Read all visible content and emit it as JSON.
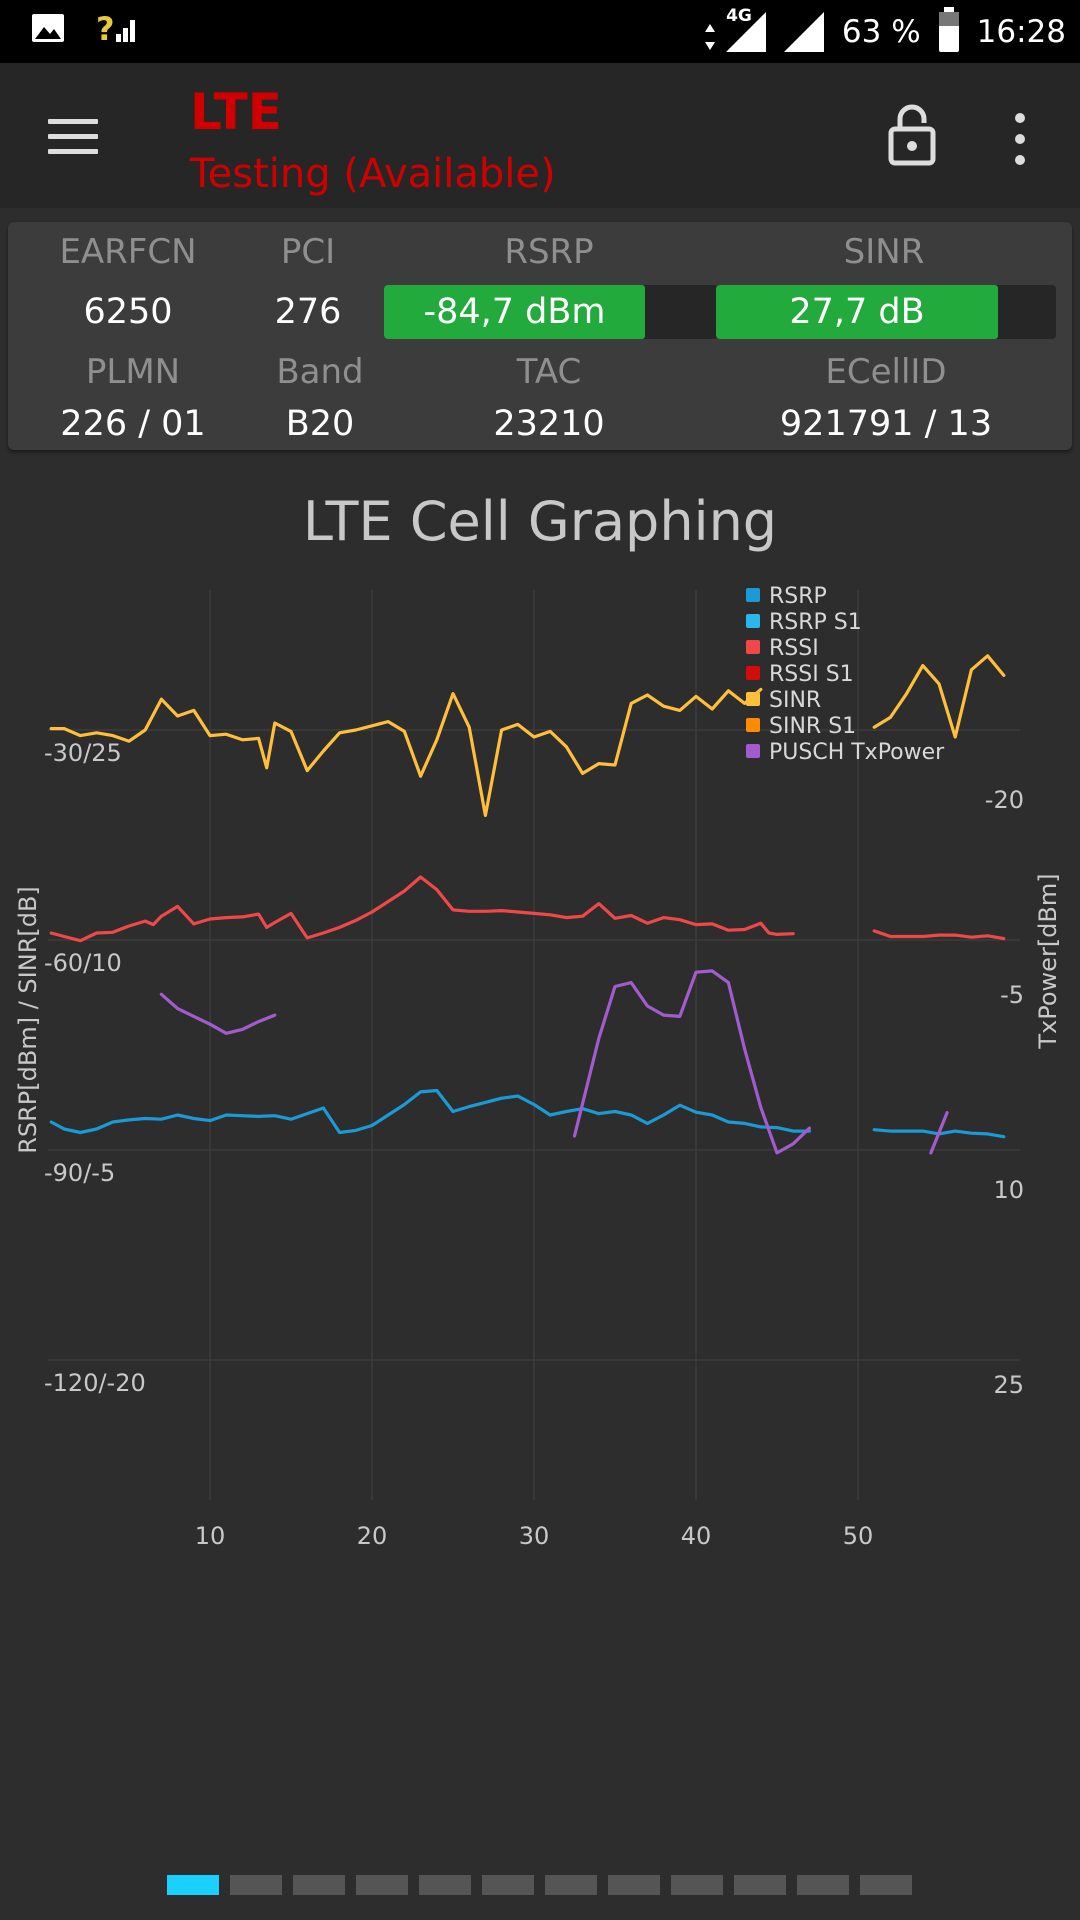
{
  "status_bar": {
    "net_label": "4G",
    "battery": "63 %",
    "time": "16:28",
    "icons": [
      "image-icon",
      "unknown-signal-icon",
      "data-arrows-icon",
      "signal-icon",
      "signal-icon",
      "battery-icon"
    ]
  },
  "app_bar": {
    "title": "LTE",
    "subtitle": "Testing (Available)",
    "icons": [
      "menu-icon",
      "lock-icon",
      "more-vert-icon"
    ]
  },
  "cell_info": {
    "earfcn_label": "EARFCN",
    "earfcn": "6250",
    "pci_label": "PCI",
    "pci": "276",
    "rsrp_label": "RSRP",
    "rsrp": "-84,7 dBm",
    "rsrp_fill": 0.78,
    "sinr_label": "SINR",
    "sinr": "27,7 dB",
    "sinr_fill": 0.83,
    "plmn_label": "PLMN",
    "plmn": "226 / 01",
    "band_label": "Band",
    "band": "B20",
    "tac_label": "TAC",
    "tac": "23210",
    "ecellid_label": "ECellID",
    "ecellid": "921791 / 13"
  },
  "colors": {
    "rsrp": "#1a9ad6",
    "rsrp_s1": "#2cb7ec",
    "rssi": "#f04848",
    "rssi_s1": "#d40b0b",
    "sinr": "#ffbf3a",
    "sinr_s1": "#ff8c00",
    "pusch": "#a45bd0",
    "rsrp_bar": "#22aa3c"
  },
  "chart_data": {
    "type": "line",
    "title": "LTE Cell Graphing",
    "ylabel": "RSRP[dBm] / SINR[dB]",
    "y2label": "TxPower[dBm]",
    "x_ticks": [
      "10",
      "20",
      "30",
      "40",
      "50"
    ],
    "xlim": [
      0,
      60
    ],
    "y_ticks": [
      "-30/25",
      "-60/10",
      "-90/-5",
      "-120/-20"
    ],
    "y_rsrp_lim": [
      -140,
      -10
    ],
    "y_sinr_lim": [
      -30,
      35
    ],
    "y2_ticks": [
      "-20",
      "-5",
      "10",
      "25"
    ],
    "y2_lim": [
      -35,
      35
    ],
    "grid": true,
    "legend_position": "top-right",
    "legend": [
      "RSRP",
      "RSRP S1",
      "RSSI",
      "RSSI S1",
      "SINR",
      "SINR S1",
      "PUSCH TxPower"
    ],
    "series": [
      {
        "name": "RSRP",
        "color_key": "rsrp",
        "axis": "rsrp",
        "points": [
          [
            0.2,
            -86
          ],
          [
            1,
            -87
          ],
          [
            2,
            -87.5
          ],
          [
            3,
            -87
          ],
          [
            4,
            -86
          ],
          [
            5,
            -85.7
          ],
          [
            6,
            -85.5
          ],
          [
            7,
            -85.6
          ],
          [
            8,
            -85
          ],
          [
            9,
            -85.5
          ],
          [
            10,
            -85.8
          ],
          [
            11,
            -85
          ],
          [
            12,
            -85.1
          ],
          [
            13,
            -85.2
          ],
          [
            14,
            -85.1
          ],
          [
            15,
            -85.6
          ],
          [
            16,
            -84.8
          ],
          [
            17,
            -84
          ],
          [
            18,
            -87.5
          ],
          [
            19,
            -87.2
          ],
          [
            20,
            -86.5
          ],
          [
            21,
            -85
          ],
          [
            22,
            -83.5
          ],
          [
            23,
            -81.7
          ],
          [
            24,
            -81.5
          ],
          [
            25,
            -84.5
          ],
          [
            26,
            -83.8
          ],
          [
            27,
            -83.2
          ],
          [
            28,
            -82.6
          ],
          [
            29,
            -82.3
          ],
          [
            30,
            -83.5
          ],
          [
            31,
            -85
          ],
          [
            32,
            -84.5
          ],
          [
            33,
            -84.1
          ],
          [
            34,
            -84.8
          ],
          [
            35,
            -84.5
          ],
          [
            36,
            -85
          ],
          [
            37,
            -86.2
          ],
          [
            38,
            -85
          ],
          [
            39,
            -83.6
          ],
          [
            40,
            -84.6
          ],
          [
            41,
            -85
          ],
          [
            42,
            -86
          ],
          [
            43,
            -86.2
          ],
          [
            44,
            -86.7
          ],
          [
            45,
            -86.8
          ],
          [
            46,
            -87.3
          ],
          [
            47,
            -87.3
          ]
        ]
      },
      {
        "name": "RSRP",
        "color_key": "rsrp",
        "axis": "rsrp",
        "points": [
          [
            51,
            -87.1
          ],
          [
            52,
            -87.3
          ],
          [
            53,
            -87.3
          ],
          [
            54,
            -87.3
          ],
          [
            55,
            -87.7
          ],
          [
            56,
            -87.3
          ],
          [
            57,
            -87.6
          ],
          [
            58,
            -87.7
          ],
          [
            59,
            -88.1
          ]
        ]
      },
      {
        "name": "RSSI",
        "color_key": "rssi",
        "axis": "rsrp",
        "points": [
          [
            0.2,
            -59
          ],
          [
            1,
            -59.5
          ],
          [
            2,
            -60.1
          ],
          [
            3,
            -59
          ],
          [
            4,
            -58.9
          ],
          [
            5,
            -58
          ],
          [
            6,
            -57.3
          ],
          [
            6.5,
            -57.8
          ],
          [
            7,
            -56.6
          ],
          [
            8,
            -55.2
          ],
          [
            9,
            -57.7
          ],
          [
            10,
            -57
          ],
          [
            11,
            -56.8
          ],
          [
            12,
            -56.7
          ],
          [
            13,
            -56.3
          ],
          [
            13.5,
            -58.2
          ],
          [
            14,
            -57.5
          ],
          [
            15,
            -56.2
          ],
          [
            16,
            -59.7
          ],
          [
            17,
            -59
          ],
          [
            18,
            -58.2
          ],
          [
            19,
            -57.2
          ],
          [
            20,
            -56
          ],
          [
            21,
            -54.5
          ],
          [
            22,
            -53
          ],
          [
            23,
            -51
          ],
          [
            24,
            -52.8
          ],
          [
            25,
            -55.7
          ],
          [
            26,
            -55.9
          ],
          [
            27,
            -55.9
          ],
          [
            28,
            -55.8
          ],
          [
            29,
            -56.0
          ],
          [
            30,
            -56.2
          ],
          [
            31,
            -56.4
          ],
          [
            32,
            -56.8
          ],
          [
            33,
            -56.6
          ],
          [
            34,
            -54.8
          ],
          [
            35,
            -56.9
          ],
          [
            36,
            -56.5
          ],
          [
            37,
            -57.6
          ],
          [
            38,
            -56.8
          ],
          [
            39,
            -57.1
          ],
          [
            40,
            -57.8
          ],
          [
            41,
            -57.7
          ],
          [
            42,
            -58.6
          ],
          [
            43,
            -58.5
          ],
          [
            44,
            -57.6
          ],
          [
            44.5,
            -59
          ],
          [
            45,
            -59.2
          ],
          [
            46,
            -59.1
          ]
        ]
      },
      {
        "name": "RSSI",
        "color_key": "rssi",
        "axis": "rsrp",
        "points": [
          [
            51,
            -58.7
          ],
          [
            52,
            -59.5
          ],
          [
            53,
            -59.5
          ],
          [
            54,
            -59.5
          ],
          [
            55,
            -59.3
          ],
          [
            56,
            -59.3
          ],
          [
            57,
            -59.6
          ],
          [
            58,
            -59.4
          ],
          [
            59,
            -59.8
          ]
        ]
      },
      {
        "name": "SINR",
        "color_key": "sinr",
        "axis": "sinr",
        "points": [
          [
            0.2,
            25.1
          ],
          [
            1,
            25.1
          ],
          [
            2,
            24.6
          ],
          [
            3,
            24.8
          ],
          [
            4,
            24.6
          ],
          [
            5,
            24.2
          ],
          [
            6,
            25
          ],
          [
            6.5,
            26.1
          ],
          [
            7,
            27.2
          ],
          [
            8,
            26
          ],
          [
            9,
            26.4
          ],
          [
            10,
            24.6
          ],
          [
            11,
            24.7
          ],
          [
            12,
            24.3
          ],
          [
            13,
            24.4
          ],
          [
            13.5,
            22.3
          ],
          [
            14,
            25.5
          ],
          [
            15,
            24.9
          ],
          [
            16,
            22.1
          ],
          [
            17,
            23.5
          ],
          [
            18,
            24.8
          ],
          [
            19,
            25
          ],
          [
            20,
            25.3
          ],
          [
            21,
            25.6
          ],
          [
            22,
            24.9
          ],
          [
            23,
            21.7
          ],
          [
            24,
            24.3
          ],
          [
            25,
            27.6
          ],
          [
            26,
            25.2
          ],
          [
            27,
            18.9
          ],
          [
            28,
            25
          ],
          [
            29,
            25.4
          ],
          [
            30,
            24.5
          ],
          [
            31,
            24.9
          ],
          [
            32,
            23.8
          ],
          [
            33,
            21.9
          ],
          [
            34,
            22.6
          ],
          [
            35,
            22.5
          ],
          [
            36,
            26.9
          ],
          [
            37,
            27.5
          ],
          [
            38,
            26.7
          ],
          [
            39,
            26.4
          ],
          [
            40,
            27.4
          ],
          [
            41,
            26.5
          ],
          [
            42,
            27.8
          ],
          [
            43,
            26.9
          ],
          [
            44,
            27.9
          ]
        ]
      },
      {
        "name": "SINR",
        "color_key": "sinr",
        "axis": "sinr",
        "points": [
          [
            51,
            25.2
          ],
          [
            52,
            25.9
          ],
          [
            53,
            27.6
          ],
          [
            54,
            29.6
          ],
          [
            55,
            28.3
          ],
          [
            56,
            24.5
          ],
          [
            57,
            29.3
          ],
          [
            58,
            30.3
          ],
          [
            59,
            28.9
          ]
        ]
      },
      {
        "name": "PUSCH TxPower",
        "color_key": "pusch",
        "axis": "tx",
        "points": [
          [
            7,
            -3.9
          ],
          [
            8,
            -2.8
          ],
          [
            9,
            -2.2
          ],
          [
            10,
            -1.6
          ],
          [
            11,
            -0.9
          ],
          [
            12,
            -1.2
          ],
          [
            13,
            -1.8
          ],
          [
            14,
            -2.3
          ]
        ]
      },
      {
        "name": "PUSCH TxPower",
        "color_key": "pusch",
        "axis": "tx",
        "points": [
          [
            32.5,
            7
          ],
          [
            34,
            -0.5
          ],
          [
            35,
            -4.5
          ],
          [
            36,
            -4.8
          ],
          [
            37,
            -3
          ],
          [
            38,
            -2.3
          ],
          [
            39,
            -2.2
          ],
          [
            40,
            -5.6
          ],
          [
            41,
            -5.7
          ],
          [
            42,
            -4.8
          ],
          [
            43,
            0.3
          ],
          [
            44,
            4.8
          ],
          [
            45,
            8.3
          ],
          [
            46,
            7.6
          ],
          [
            47,
            6.4
          ]
        ]
      },
      {
        "name": "PUSCH TxPower",
        "color_key": "pusch",
        "axis": "tx",
        "points": [
          [
            54.5,
            8.3
          ],
          [
            55.5,
            5.2
          ]
        ]
      }
    ]
  },
  "pager": {
    "count": 12,
    "active": 0
  }
}
